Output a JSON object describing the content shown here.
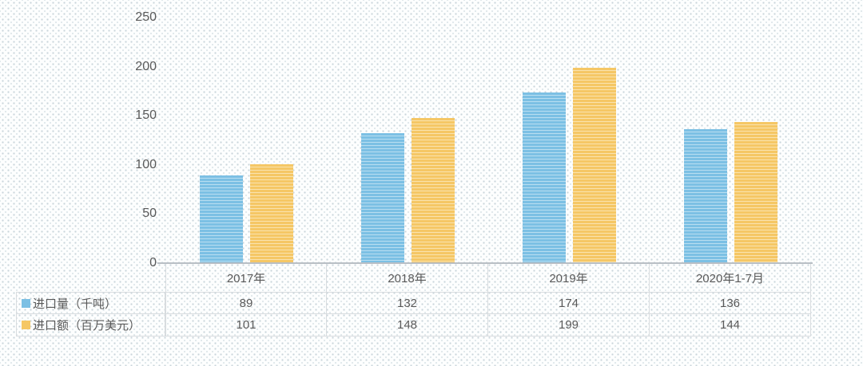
{
  "chart_data": {
    "type": "bar",
    "categories": [
      "2017年",
      "2018年",
      "2019年",
      "2020年1-7月"
    ],
    "series": [
      {
        "name": "进口量（千吨）",
        "color": "#7cc0e4",
        "stripe_color": "#b9def1",
        "values": [
          89,
          132,
          174,
          136
        ]
      },
      {
        "name": "进口额（百万美元）",
        "color": "#f5c765",
        "stripe_color": "#fae3ae",
        "values": [
          101,
          148,
          199,
          144
        ]
      }
    ],
    "ylim": [
      0,
      250
    ],
    "yticks": [
      0,
      50,
      100,
      150,
      200,
      250
    ],
    "grid": false,
    "legend_position": "data-table-left",
    "data_table": true,
    "text_color": "#595959",
    "axis_line_color": "#b9bfc5",
    "table_border_color": "#d8dcdf"
  }
}
